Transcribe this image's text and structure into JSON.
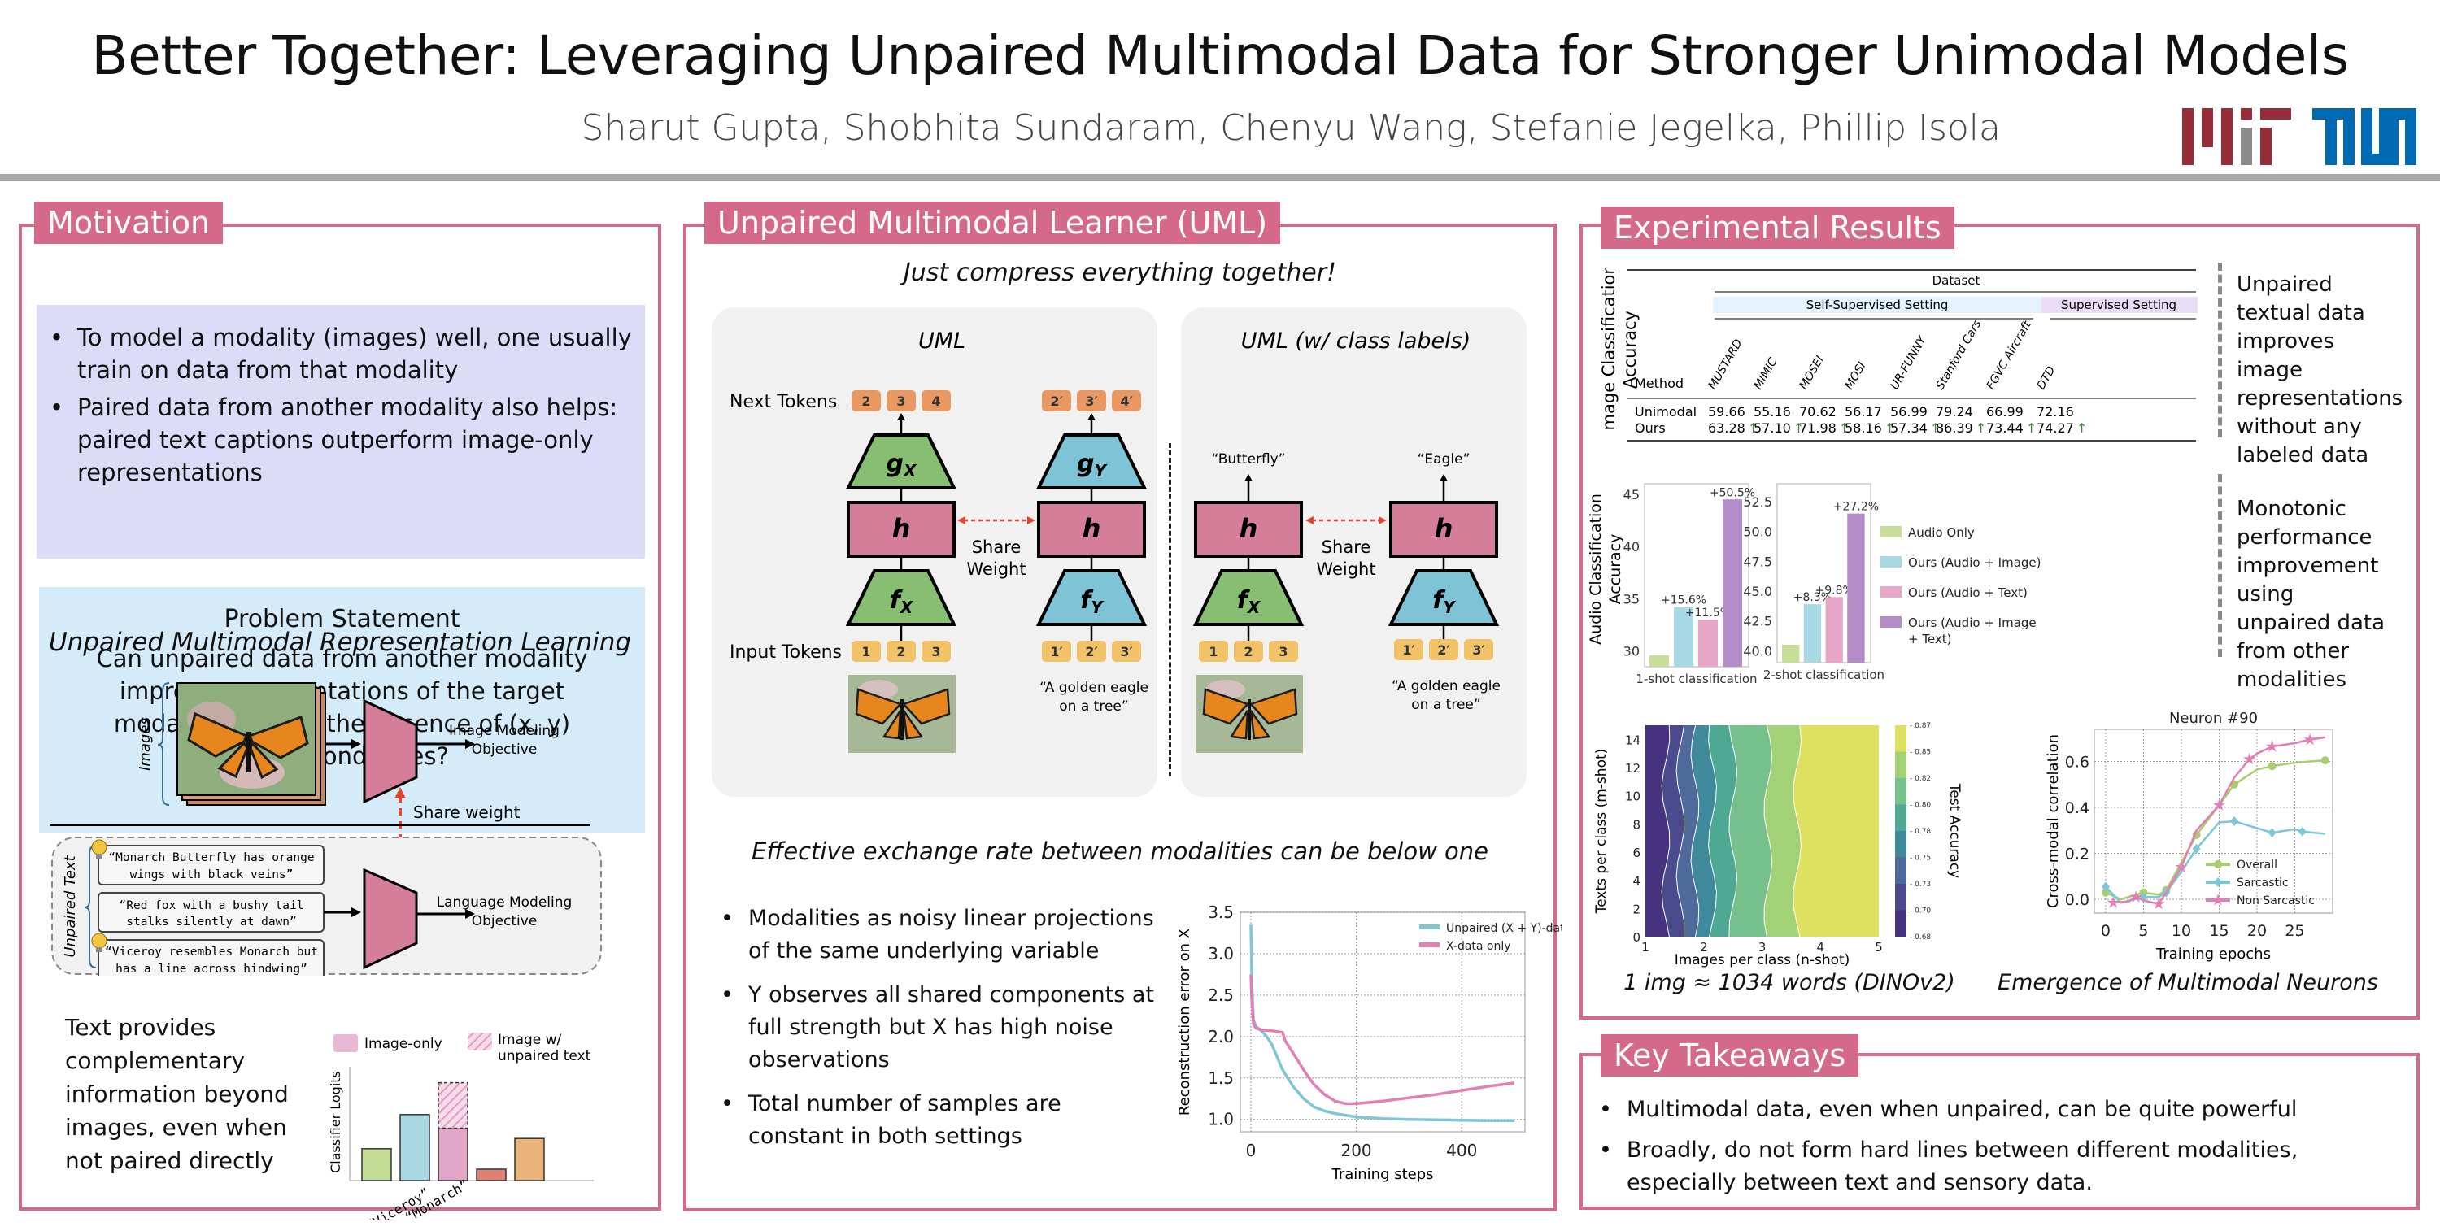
{
  "header": {
    "title": "Better Together: Leveraging Unpaired Multimodal Data for Stronger Unimodal Models",
    "authors": "Sharut Gupta, Shobhita Sundaram, Chenyu Wang, Stefanie Jegelka, Phillip Isola",
    "logos": [
      "MIT",
      "TUM"
    ],
    "colors": {
      "mit_red": "#992c39",
      "mit_grey": "#8a8b8c",
      "tum_blue": "#0069b4",
      "accent": "#d4698a"
    }
  },
  "motivation": {
    "title": "Motivation",
    "bullets": [
      "To model a modality (images) well, one usually train on data from that modality",
      "Paired data from another modality also helps: paired text captions outperform image-only representations"
    ],
    "problem_title": "Problem Statement",
    "problem_text": "Can unpaired data from another modality improve representations of the target modality, even in the absence of (x, y) correspondences?",
    "figure_title": "Unpaired Multimodal Representation Learning",
    "images_label": "Images",
    "image_objective": [
      "Image Modeling",
      "Objective"
    ],
    "share_weight": "Share weight",
    "unpaired_text_label": "Unpaired Text",
    "text_samples": [
      [
        "“Monarch Butterfly has orange",
        "wings with black veins”"
      ],
      [
        "“Red fox with a bushy tail",
        "stalks silently at dawn”"
      ],
      [
        "“Viceroy resembles Monarch but",
        "has a line across hindwing”"
      ]
    ],
    "language_objective": [
      "Language Modeling",
      "Objective"
    ],
    "complement_text": [
      "Text provides",
      "complementary",
      "information beyond",
      "images, even when",
      "not paired directly"
    ],
    "logits_chart": {
      "ylabel": "Classifier Logits",
      "legend": [
        "Image-only",
        "Image w/ unpaired text"
      ],
      "xlabels": [
        "“Viceroy”",
        "“Monarch”"
      ],
      "bars": [
        {
          "value": 0.28,
          "color": "#c3dd96"
        },
        {
          "value": 0.58,
          "color": "#a9d8e3"
        },
        {
          "value": 0.46,
          "color": "#e2a6c9",
          "extra": 0.4
        },
        {
          "value": 0.1,
          "color": "#e08070"
        },
        {
          "value": 0.37,
          "color": "#eab57a"
        }
      ]
    }
  },
  "uml": {
    "title": "Unpaired Multimodal Learner (UML)",
    "tagline": "Just compress everything together!",
    "left_title": "UML",
    "right_title": "UML (w/ class labels)",
    "next_tokens_label": "Next  Tokens",
    "input_tokens_label": "Input Tokens",
    "next_x": [
      "2",
      "3",
      "4"
    ],
    "next_y": [
      "2′",
      "3′",
      "4′"
    ],
    "in_x": [
      "1",
      "2",
      "3"
    ],
    "in_y": [
      "1′",
      "2′",
      "3′"
    ],
    "g_x": "g",
    "g_y": "g",
    "f": "f",
    "h": "h",
    "sub_x": "X",
    "sub_y": "Y",
    "share": [
      "Share",
      "Weight"
    ],
    "caption": [
      "“A golden eagle",
      "on a tree”"
    ],
    "label_x": "“Butterfly”",
    "label_y": "“Eagle”",
    "exchange_title": "Effective exchange rate between modalities can be below one",
    "exchange_bullets": [
      "Modalities as noisy linear projections of the same underlying variable",
      "Y observes all shared components at full strength but X has high noise observations",
      "Total number of samples are constant in both settings"
    ]
  },
  "results": {
    "title": "Experimental Results",
    "table_ylabel": [
      "Image Classification",
      "Accuracy"
    ],
    "table": {
      "dataset_header": "Dataset",
      "group_headers": [
        "Self-Supervised Setting",
        "Supervised Setting"
      ],
      "method_header": "Method",
      "columns": [
        "MUSTARD",
        "MIMIC",
        "MOSEI",
        "MOSI",
        "UR-FUNNY",
        "Stanford Cars",
        "FGVC Aircraft",
        "DTD"
      ],
      "rows": [
        {
          "method": "Unimodal",
          "values": [
            "59.66",
            "55.16",
            "70.62",
            "56.17",
            "56.99",
            "79.24",
            "66.99",
            "72.16"
          ]
        },
        {
          "method": "Ours",
          "values": [
            "63.28",
            "57.10",
            "71.98",
            "58.16",
            "57.34",
            "86.39",
            "73.44",
            "74.27"
          ],
          "arrow": "↑"
        }
      ]
    },
    "note_1": "Unpaired textual data improves image representations without any labeled data",
    "note_2": "Monotonic performance improvement using unpaired data from other modalities",
    "heatmap_caption": "1 img ≈ 1034 words (DINOv2)",
    "neuron_caption": "Emergence of Multimodal Neurons"
  },
  "takeaways": {
    "title": "Key Takeaways",
    "bullets": [
      "Multimodal data, even when unpaired, can be quite powerful",
      "Broadly, do not form hard lines between different modalities, especially between text and sensory data."
    ]
  },
  "chart_data": [
    {
      "id": "reconstruction",
      "type": "line",
      "title": "",
      "xlabel": "Training steps",
      "ylabel": "Reconstruction error on X",
      "xlim": [
        -20,
        520
      ],
      "ylim": [
        0.85,
        3.5
      ],
      "xticks": [
        0,
        200,
        400
      ],
      "yticks": [
        1.0,
        1.5,
        2.0,
        2.5,
        3.0,
        3.5
      ],
      "grid": true,
      "legend": "top-right",
      "series": [
        {
          "name": "Unpaired (X + Y)-data",
          "color": "#7fc6d6",
          "x": [
            0,
            2,
            5,
            10,
            20,
            30,
            40,
            50,
            60,
            80,
            100,
            120,
            140,
            160,
            180,
            200,
            250,
            300,
            350,
            400,
            450,
            500
          ],
          "y": [
            3.35,
            2.6,
            2.2,
            2.12,
            2.07,
            2.0,
            1.9,
            1.75,
            1.6,
            1.4,
            1.25,
            1.15,
            1.1,
            1.07,
            1.05,
            1.03,
            1.01,
            1.0,
            0.995,
            0.99,
            0.985,
            0.985
          ]
        },
        {
          "name": "X-data only",
          "color": "#e27fb5",
          "x": [
            0,
            2,
            5,
            10,
            20,
            40,
            60,
            65,
            75,
            85,
            95,
            105,
            120,
            140,
            160,
            180,
            200,
            250,
            300,
            350,
            400,
            450,
            500
          ],
          "y": [
            2.75,
            2.4,
            2.15,
            2.1,
            2.08,
            2.07,
            2.05,
            1.95,
            1.85,
            1.75,
            1.65,
            1.55,
            1.42,
            1.3,
            1.22,
            1.19,
            1.19,
            1.22,
            1.26,
            1.3,
            1.35,
            1.4,
            1.44
          ]
        }
      ]
    },
    {
      "id": "audio-1shot",
      "type": "bar",
      "xlabel": "1-shot classification",
      "ylabel": "Audio Classification Accuracy",
      "ylim": [
        28.5,
        46
      ],
      "yticks": [
        30,
        35,
        40,
        45
      ],
      "categories": [
        "Audio Only",
        "Ours (Audio + Image)",
        "Ours (Audio + Text)",
        "Ours (Audio + Image + Text)"
      ],
      "values": [
        29.6,
        34.2,
        33.0,
        44.5
      ],
      "labels": [
        "",
        "+15.6%",
        "+11.5%",
        "+50.5%"
      ],
      "colors": [
        "#c8de98",
        "#a9d9e2",
        "#e8a7c8",
        "#b48cc8"
      ]
    },
    {
      "id": "audio-2shot",
      "type": "bar",
      "xlabel": "2-shot classification",
      "ylim": [
        39,
        54
      ],
      "yticks": [
        40.0,
        42.5,
        45.0,
        47.5,
        50.0,
        52.5
      ],
      "categories": [
        "Audio Only",
        "Ours (Audio + Image)",
        "Ours (Audio + Text)",
        "Ours (Audio + Image + Text)"
      ],
      "values": [
        40.5,
        43.9,
        44.5,
        51.5
      ],
      "labels": [
        "",
        "+8.3%",
        "+9.8%",
        "+27.2%"
      ],
      "colors": [
        "#c8de98",
        "#a9d9e2",
        "#e8a7c8",
        "#b48cc8"
      ],
      "legend": [
        "Audio Only",
        "Ours (Audio + Image)",
        "Ours (Audio + Text)",
        "Ours (Audio + Image + Text)"
      ]
    },
    {
      "id": "exchange-heatmap",
      "type": "heatmap",
      "xlabel": "Images per class (n-shot)",
      "ylabel": "Texts per class (m-shot)",
      "colorbar_label": "Test Accuracy",
      "xlim": [
        1,
        5
      ],
      "ylim": [
        0,
        15
      ],
      "xticks": [
        1,
        2,
        3,
        4,
        5
      ],
      "yticks": [
        0,
        2,
        4,
        6,
        8,
        10,
        12,
        14
      ],
      "colorbar_ticks": [
        "0.68",
        "0.70",
        "0.73",
        "0.75",
        "0.78",
        "0.80",
        "0.82",
        "0.85",
        "0.87"
      ],
      "levels": [
        0.68,
        0.7,
        0.73,
        0.75,
        0.78,
        0.8,
        0.82,
        0.85,
        0.87
      ],
      "level_colors": [
        "#46327e",
        "#4a4a8c",
        "#4e6a9a",
        "#3f8a9a",
        "#4ea893",
        "#76c18b",
        "#a3d175",
        "#dde15f"
      ],
      "contour_x_at_levels": [
        1.35,
        1.6,
        1.85,
        2.15,
        2.5,
        3.1,
        3.6
      ],
      "contour_labels": [
        "0.70",
        "0.75",
        "0.73",
        "0.70",
        "0.78",
        "0.80",
        "0.82",
        "0.85"
      ]
    },
    {
      "id": "neuron-90",
      "type": "line",
      "title": "Neuron #90",
      "xlabel": "Training epochs",
      "ylabel": "Cross-modal correlation",
      "xlim": [
        -1.5,
        30
      ],
      "ylim": [
        -0.06,
        0.74
      ],
      "xticks": [
        0,
        5,
        10,
        15,
        20,
        25
      ],
      "yticks": [
        0.0,
        0.2,
        0.4,
        0.6
      ],
      "grid": true,
      "legend": "bottom-right",
      "series": [
        {
          "name": "Overall",
          "color": "#a9cc6e",
          "marker": "circle",
          "x": [
            0,
            2,
            5,
            7,
            8,
            10,
            12,
            15,
            17,
            20,
            22,
            25,
            29
          ],
          "y": [
            0.03,
            0.0,
            0.03,
            0.02,
            0.04,
            0.16,
            0.28,
            0.41,
            0.5,
            0.565,
            0.58,
            0.595,
            0.605
          ]
        },
        {
          "name": "Sarcastic",
          "color": "#7cc7d8",
          "marker": "diamond",
          "x": [
            0,
            2,
            5,
            7,
            8,
            10,
            12,
            15,
            17,
            20,
            22,
            25,
            26,
            29
          ],
          "y": [
            0.055,
            -0.015,
            0.01,
            0.01,
            0.03,
            0.12,
            0.22,
            0.335,
            0.34,
            0.31,
            0.29,
            0.305,
            0.295,
            0.285
          ]
        },
        {
          "name": "Non Sarcastic",
          "color": "#e27fb5",
          "marker": "star",
          "x": [
            1,
            3,
            4,
            5,
            7,
            8,
            10,
            12,
            15,
            17,
            19,
            20,
            22,
            25,
            27,
            29
          ],
          "y": [
            -0.015,
            -0.01,
            0.01,
            -0.005,
            -0.02,
            0.03,
            0.14,
            0.3,
            0.41,
            0.53,
            0.61,
            0.635,
            0.665,
            0.68,
            0.695,
            0.705
          ]
        }
      ]
    }
  ]
}
